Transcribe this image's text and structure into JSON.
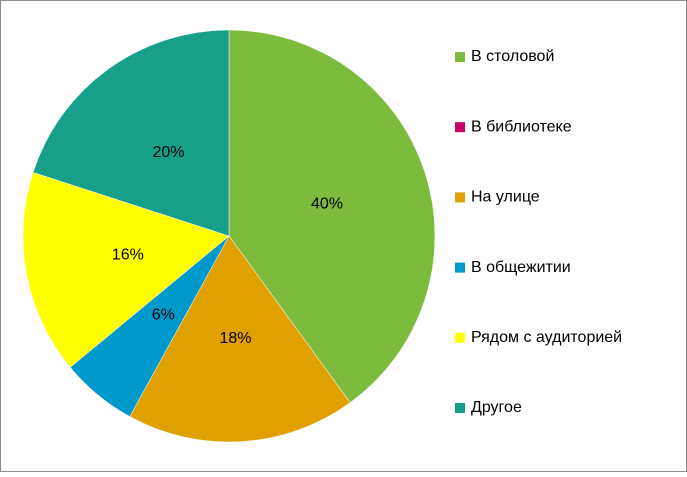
{
  "chart_data": {
    "type": "pie",
    "categories": [
      "В столовой",
      "В библиотеке",
      "На улице",
      "В общежитии",
      "Рядом с аудиторией",
      "Другое"
    ],
    "values": [
      40,
      0,
      18,
      6,
      16,
      20
    ],
    "value_labels": [
      "40%",
      null,
      "18%",
      "6%",
      "16%",
      "20%"
    ],
    "colors": [
      "#7cbb3c",
      "#cc0066",
      "#e0a000",
      "#0099cc",
      "#ffff00",
      "#16a08a"
    ],
    "legend": "right"
  }
}
